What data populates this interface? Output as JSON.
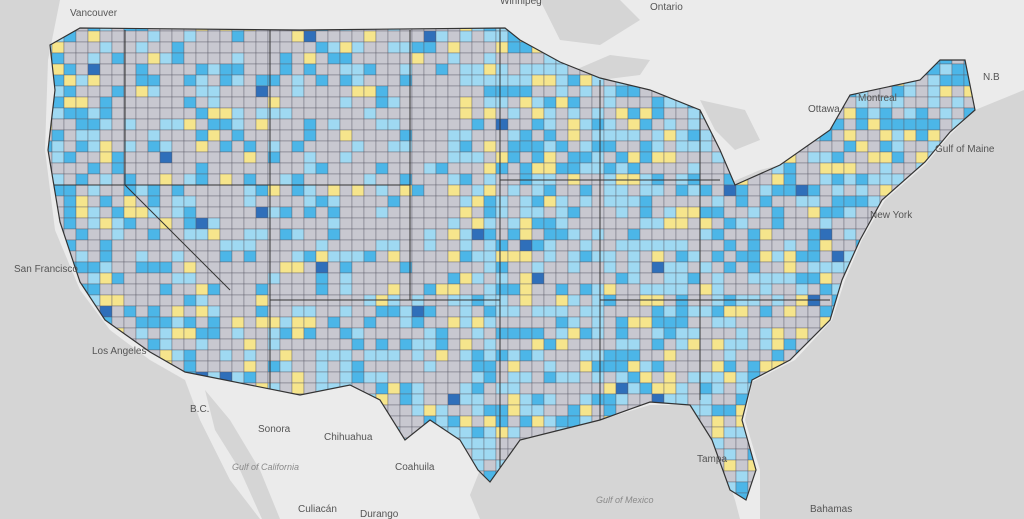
{
  "places": [
    "Vancouver",
    "Ottawa",
    "Montreal",
    "N.B",
    "Gulf of Maine",
    "New York",
    "San Francisco",
    "Los Angeles",
    "B.C.",
    "Sonora",
    "Chihuahua",
    "Coahuila",
    "Culiacán",
    "Durango",
    "Tampa",
    "Bahamas",
    "Ontario",
    "Winnipeg"
  ],
  "water_labels": [
    "Gulf of Mexico",
    "Gulf of California"
  ]
}
